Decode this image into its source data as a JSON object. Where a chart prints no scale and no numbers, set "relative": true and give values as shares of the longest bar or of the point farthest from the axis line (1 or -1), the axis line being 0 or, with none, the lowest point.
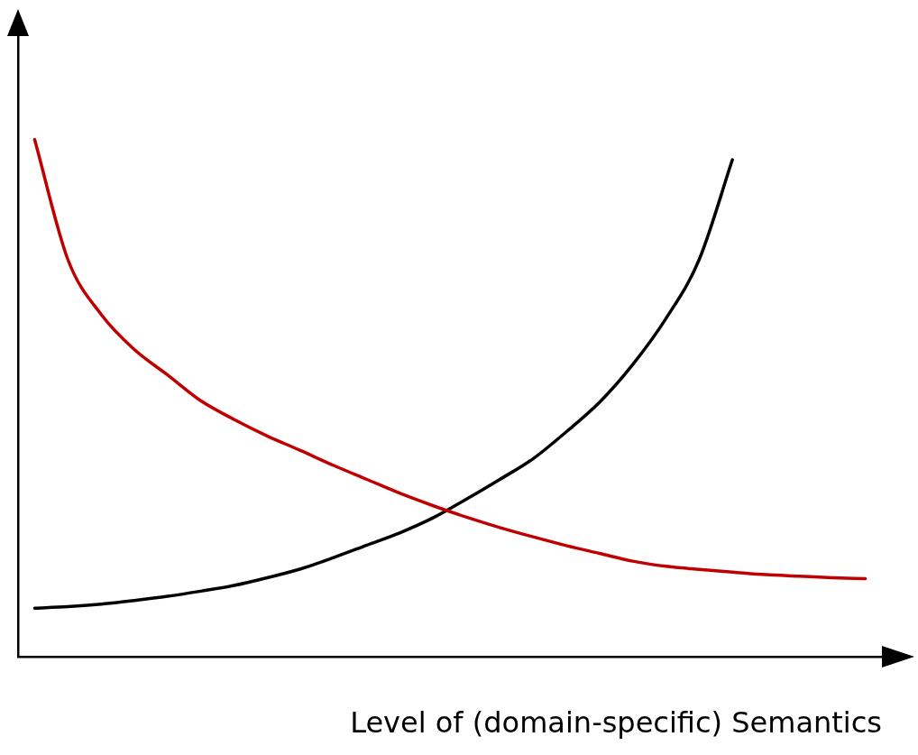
{
  "chart_data": {
    "type": "line",
    "xlabel": "Level of (domain-specific) Semantics",
    "relative": true,
    "grid": false,
    "legend": false,
    "marker": "none",
    "line_style": "solid",
    "categories": [
      null,
      null,
      null,
      null,
      null,
      null,
      null,
      null,
      null,
      null,
      null,
      null,
      null,
      null,
      null,
      null,
      null,
      null,
      null,
      null,
      null,
      null,
      null,
      null,
      null,
      null
    ],
    "series": [
      {
        "color": "#c00000",
        "values": [
          1.0,
          0.768,
          0.662,
          0.594,
          0.545,
          0.495,
          0.459,
          0.427,
          0.399,
          0.37,
          0.343,
          0.316,
          0.292,
          0.27,
          0.25,
          0.232,
          0.215,
          0.2,
          0.185,
          0.175,
          0.169,
          0.164,
          0.159,
          0.156,
          0.153,
          0.151
        ]
      },
      {
        "color": "#000000",
        "values": [
          0.094,
          0.097,
          0.102,
          0.109,
          0.117,
          0.127,
          0.138,
          0.153,
          0.17,
          0.192,
          0.216,
          0.24,
          0.269,
          0.305,
          0.343,
          0.383,
          0.435,
          0.492,
          0.565,
          0.654,
          0.768,
          0.961,
          null,
          null,
          null,
          null
        ]
      }
    ]
  }
}
